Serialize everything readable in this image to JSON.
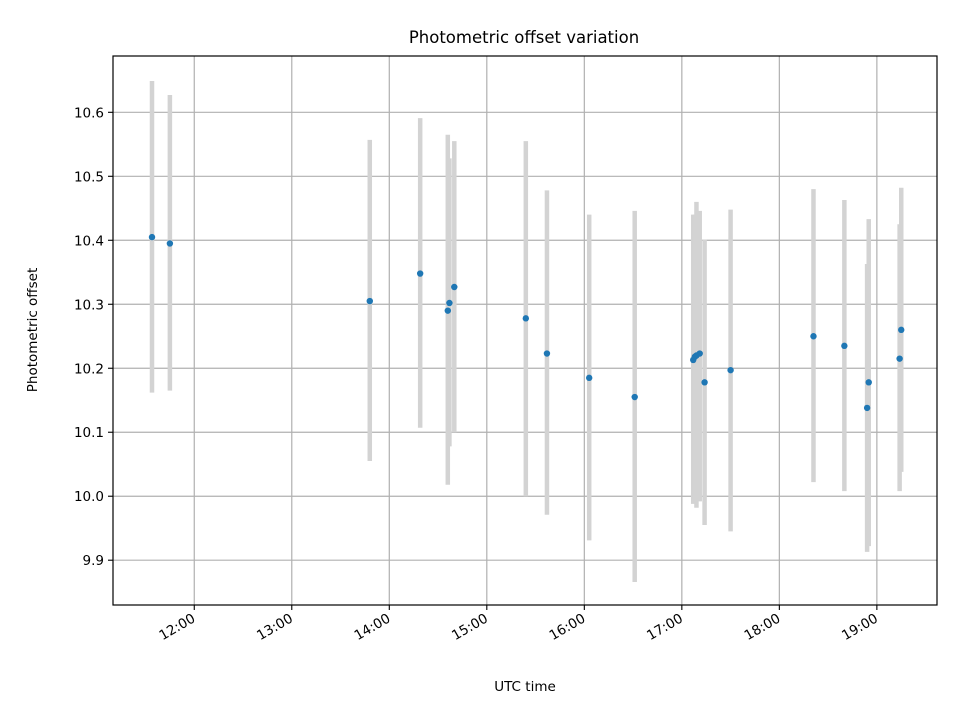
{
  "chart_data": {
    "type": "scatter",
    "title": "Photometric offset variation",
    "xlabel": "UTC time",
    "ylabel": "Photometric offset",
    "xlim": [
      "11:10",
      "19:37"
    ],
    "ylim": [
      9.83,
      10.688
    ],
    "x_ticks": [
      "12:00",
      "13:00",
      "14:00",
      "15:00",
      "16:00",
      "17:00",
      "18:00",
      "19:00"
    ],
    "y_ticks": [
      "9.9",
      "10.0",
      "10.1",
      "10.2",
      "10.3",
      "10.4",
      "10.5",
      "10.6"
    ],
    "grid": true,
    "colors": {
      "point": "#1f77b4",
      "errorbar": "#d3d3d3",
      "grid": "#b0b0b0"
    },
    "points": [
      {
        "x": "11:34",
        "y": 10.405,
        "ylo": 10.162,
        "yhi": 10.649
      },
      {
        "x": "11:45",
        "y": 10.395,
        "ylo": 10.165,
        "yhi": 10.627
      },
      {
        "x": "13:48",
        "y": 10.305,
        "ylo": 10.055,
        "yhi": 10.557
      },
      {
        "x": "14:19",
        "y": 10.348,
        "ylo": 10.107,
        "yhi": 10.591
      },
      {
        "x": "14:36",
        "y": 10.29,
        "ylo": 10.018,
        "yhi": 10.565
      },
      {
        "x": "14:37",
        "y": 10.302,
        "ylo": 10.078,
        "yhi": 10.528
      },
      {
        "x": "14:40",
        "y": 10.327,
        "ylo": 10.1,
        "yhi": 10.555
      },
      {
        "x": "15:24",
        "y": 10.278,
        "ylo": 10.0,
        "yhi": 10.555
      },
      {
        "x": "15:37",
        "y": 10.223,
        "ylo": 9.971,
        "yhi": 10.478
      },
      {
        "x": "16:03",
        "y": 10.185,
        "ylo": 9.931,
        "yhi": 10.44
      },
      {
        "x": "16:31",
        "y": 10.155,
        "ylo": 9.866,
        "yhi": 10.446
      },
      {
        "x": "17:07",
        "y": 10.213,
        "ylo": 9.988,
        "yhi": 10.44
      },
      {
        "x": "17:08",
        "y": 10.218,
        "ylo": 9.995,
        "yhi": 10.44
      },
      {
        "x": "17:09",
        "y": 10.22,
        "ylo": 9.982,
        "yhi": 10.46
      },
      {
        "x": "17:11",
        "y": 10.223,
        "ylo": 9.992,
        "yhi": 10.446
      },
      {
        "x": "17:14",
        "y": 10.178,
        "ylo": 9.955,
        "yhi": 10.401
      },
      {
        "x": "17:30",
        "y": 10.197,
        "ylo": 9.945,
        "yhi": 10.448
      },
      {
        "x": "18:21",
        "y": 10.25,
        "ylo": 10.022,
        "yhi": 10.48
      },
      {
        "x": "18:40",
        "y": 10.235,
        "ylo": 10.008,
        "yhi": 10.463
      },
      {
        "x": "18:54",
        "y": 10.138,
        "ylo": 9.913,
        "yhi": 10.363
      },
      {
        "x": "18:55",
        "y": 10.178,
        "ylo": 9.922,
        "yhi": 10.433
      },
      {
        "x": "19:14",
        "y": 10.215,
        "ylo": 10.008,
        "yhi": 10.425
      },
      {
        "x": "19:15",
        "y": 10.26,
        "ylo": 10.038,
        "yhi": 10.482
      }
    ]
  }
}
